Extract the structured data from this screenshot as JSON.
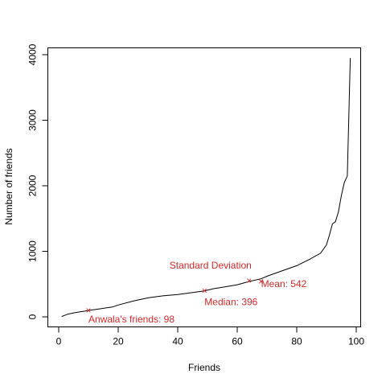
{
  "chart_data": {
    "type": "line",
    "title": "",
    "xlabel": "Friends",
    "ylabel": "Number of friends",
    "xlim": [
      0,
      100
    ],
    "ylim": [
      0,
      4000
    ],
    "xticks": [
      0,
      20,
      40,
      60,
      80,
      100
    ],
    "yticks": [
      0,
      1000,
      2000,
      3000,
      4000
    ],
    "xtick_labels": [
      "0",
      "20",
      "40",
      "60",
      "80",
      "100"
    ],
    "ytick_labels": [
      "0",
      "1000",
      "2000",
      "3000",
      "4000"
    ],
    "grid": false,
    "line_color": "#000000",
    "annotation_color": "#d62728",
    "series": [
      {
        "x": [
          1,
          3,
          5,
          7,
          9,
          10,
          12,
          15,
          18,
          20,
          25,
          30,
          35,
          40,
          45,
          49,
          52,
          55,
          60,
          64,
          68,
          70,
          75,
          80,
          84,
          88,
          90,
          91,
          92,
          93,
          94,
          95,
          96,
          97,
          98
        ],
        "values": [
          5,
          40,
          60,
          75,
          90,
          98,
          110,
          130,
          150,
          180,
          240,
          290,
          320,
          340,
          370,
          396,
          430,
          450,
          490,
          540,
          580,
          620,
          700,
          780,
          870,
          970,
          1100,
          1250,
          1420,
          1450,
          1600,
          1850,
          2050,
          2150,
          3950
        ]
      }
    ],
    "annotations": [
      {
        "label": "Standard Deviation",
        "marker": "×",
        "x": 64,
        "y": 550
      },
      {
        "label": "Mean: 542",
        "marker": "×",
        "x": 68,
        "y": 542
      },
      {
        "label": "Median: 396",
        "marker": "×",
        "x": 49,
        "y": 396
      },
      {
        "label": "Anwala's friends: 98",
        "marker": "×",
        "x": 10,
        "y": 98
      }
    ]
  }
}
